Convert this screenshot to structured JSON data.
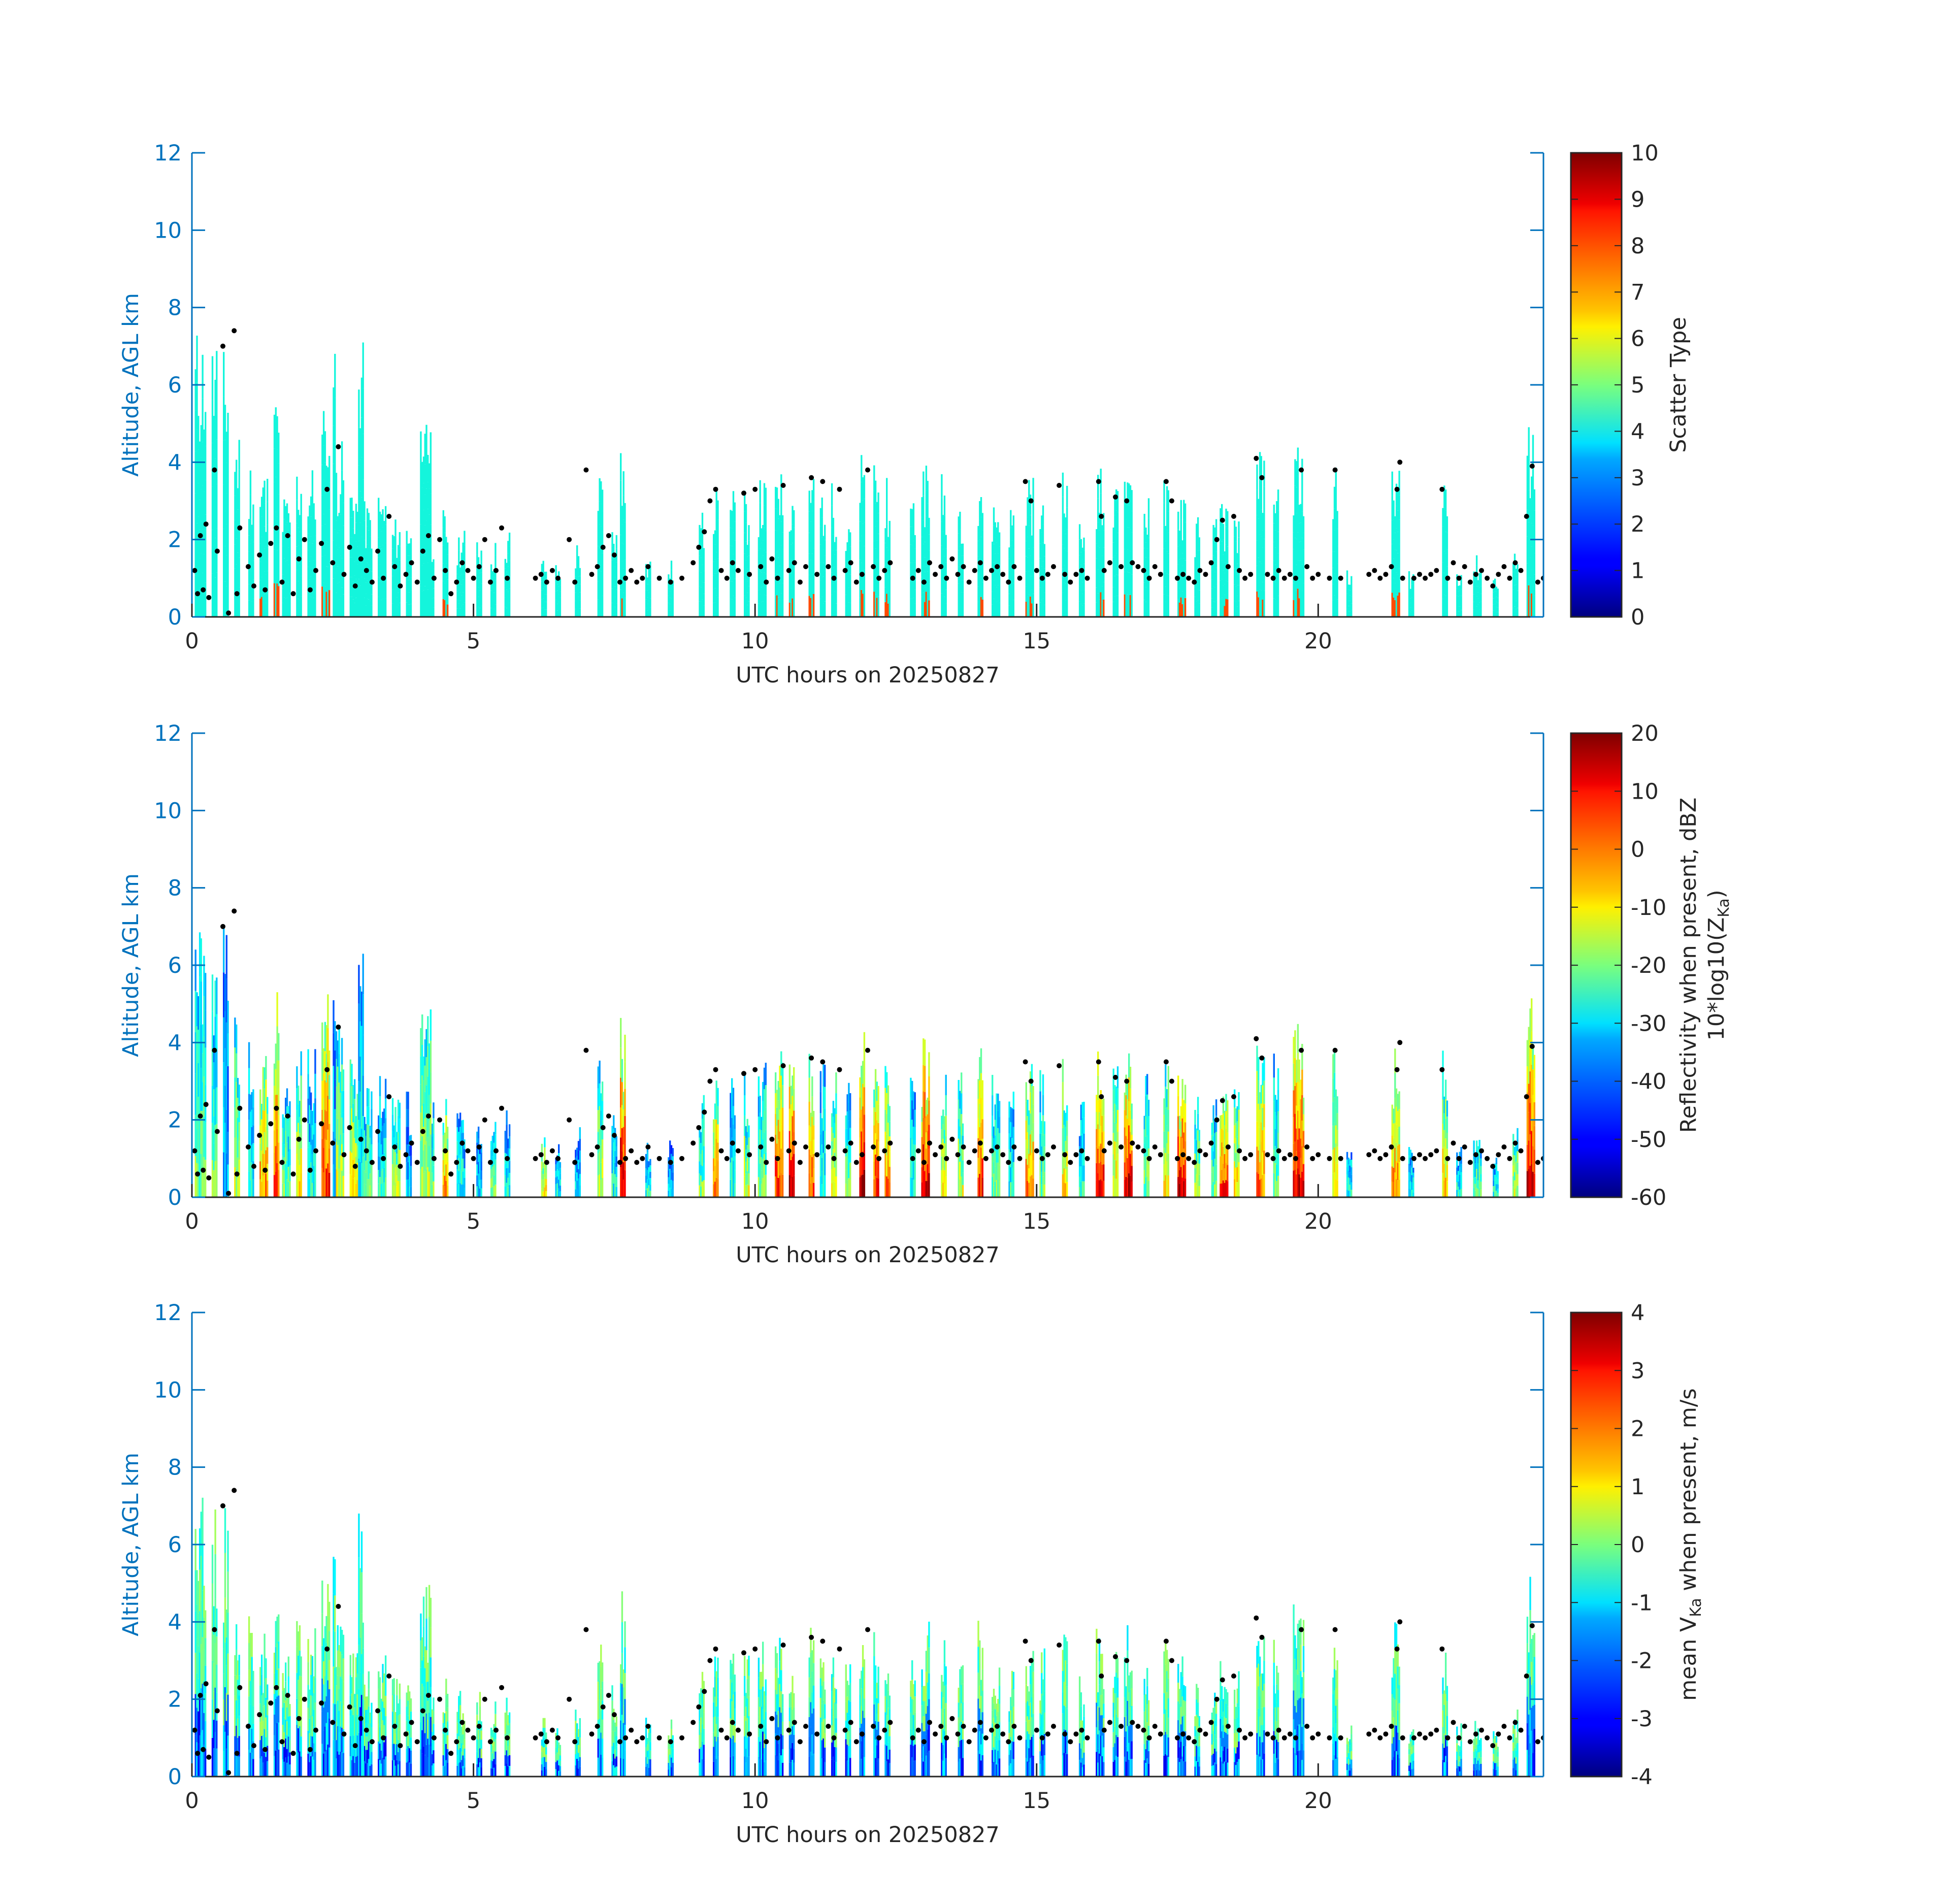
{
  "chart_data": [
    {
      "type": "heatmap",
      "xlabel": "UTC hours on 20250827",
      "ylabel": "Altitude, AGL km",
      "xlim": [
        0,
        24
      ],
      "ylim": [
        0,
        12
      ],
      "xticks": [
        0,
        5,
        10,
        15,
        20
      ],
      "yticks": [
        0,
        2,
        4,
        6,
        8,
        10,
        12
      ],
      "colorbar": {
        "label": "Scatter Type",
        "label_sub": "",
        "range": [
          0,
          10
        ],
        "ticks": [
          0,
          1,
          2,
          3,
          4,
          5,
          6,
          7,
          8,
          9,
          10
        ],
        "colormap": "jet"
      },
      "field": "scatter_type",
      "overlay": "black dots: cloud-base altitude (km)"
    },
    {
      "type": "heatmap",
      "xlabel": "UTC hours on 20250827",
      "ylabel": "Altitude, AGL km",
      "xlim": [
        0,
        24
      ],
      "ylim": [
        0,
        12
      ],
      "xticks": [
        0,
        5,
        10,
        15,
        20
      ],
      "yticks": [
        0,
        2,
        4,
        6,
        8,
        10,
        12
      ],
      "colorbar": {
        "label": "Reflectivity when present, dBZ",
        "label_sub": "10*log10(Z",
        "label_sub_subscript": "Ka",
        "label_sub_end": ")",
        "range": [
          -60,
          20
        ],
        "ticks": [
          -60,
          -50,
          -40,
          -30,
          -20,
          -10,
          0,
          10,
          20
        ],
        "colormap": "jet"
      },
      "field": "reflectivity_dbz",
      "overlay": "black dots: cloud-base altitude (km)"
    },
    {
      "type": "heatmap",
      "xlabel": "UTC hours on 20250827",
      "ylabel": "Altitude, AGL km",
      "xlim": [
        0,
        24
      ],
      "ylim": [
        0,
        12
      ],
      "xticks": [
        0,
        5,
        10,
        15,
        20
      ],
      "yticks": [
        0,
        2,
        4,
        6,
        8,
        10,
        12
      ],
      "colorbar": {
        "label": "mean V",
        "label_subscript": "Ka",
        "label_end": " when present, m/s",
        "range": [
          -4,
          4
        ],
        "ticks": [
          -4,
          -3,
          -2,
          -1,
          0,
          1,
          2,
          3,
          4
        ],
        "colormap": "jet"
      },
      "field": "mean_doppler_velocity",
      "overlay": "black dots: cloud-base altitude (km)"
    }
  ],
  "cloud_columns": [
    [
      0.05,
      0.25,
      7.6,
      4
    ],
    [
      0.35,
      0.45,
      7.4,
      4
    ],
    [
      0.55,
      0.65,
      7.0,
      2
    ],
    [
      0.75,
      0.85,
      5.0,
      5
    ],
    [
      1.0,
      1.1,
      4.2,
      3
    ],
    [
      1.2,
      1.35,
      3.8,
      7
    ],
    [
      1.45,
      1.55,
      5.8,
      8
    ],
    [
      1.6,
      1.75,
      3.2,
      4
    ],
    [
      1.85,
      1.95,
      4.1,
      6
    ],
    [
      2.05,
      2.2,
      4.0,
      3
    ],
    [
      2.3,
      2.45,
      5.5,
      8
    ],
    [
      2.55,
      2.7,
      4.6,
      5
    ],
    [
      2.8,
      2.95,
      3.6,
      6
    ],
    [
      3.05,
      3.2,
      3.0,
      4
    ],
    [
      3.3,
      3.45,
      3.3,
      3
    ],
    [
      3.55,
      3.7,
      2.6,
      5
    ],
    [
      3.8,
      3.9,
      2.8,
      2
    ],
    [
      4.2,
      4.3,
      2.5,
      4
    ],
    [
      4.45,
      4.55,
      2.8,
      7
    ],
    [
      4.7,
      4.85,
      2.3,
      3
    ],
    [
      5.05,
      5.15,
      2.2,
      2
    ],
    [
      5.3,
      5.4,
      2.0,
      4
    ],
    [
      5.55,
      5.65,
      2.4,
      3
    ],
    [
      6.2,
      6.3,
      1.6,
      6
    ],
    [
      6.45,
      6.55,
      1.4,
      3
    ],
    [
      6.8,
      6.9,
      2.0,
      2
    ],
    [
      7.2,
      7.3,
      3.8,
      5
    ],
    [
      7.45,
      7.55,
      2.4,
      3
    ],
    [
      7.6,
      7.7,
      4.9,
      9
    ],
    [
      8.05,
      8.15,
      1.6,
      3
    ],
    [
      8.45,
      8.55,
      1.5,
      2
    ],
    [
      9.0,
      9.1,
      2.8,
      4
    ],
    [
      9.25,
      9.35,
      3.4,
      7
    ],
    [
      9.55,
      9.65,
      3.4,
      3
    ],
    [
      9.8,
      9.9,
      3.3,
      5
    ],
    [
      10.05,
      10.2,
      3.6,
      4
    ],
    [
      10.35,
      10.5,
      3.8,
      8
    ],
    [
      10.6,
      10.7,
      3.7,
      9
    ],
    [
      10.95,
      11.05,
      3.9,
      8
    ],
    [
      11.15,
      11.25,
      3.6,
      3
    ],
    [
      11.35,
      11.45,
      3.5,
      6
    ],
    [
      11.6,
      11.7,
      3.0,
      4
    ],
    [
      11.85,
      11.95,
      4.4,
      9
    ],
    [
      12.1,
      12.2,
      4.0,
      8
    ],
    [
      12.3,
      12.4,
      3.6,
      7
    ],
    [
      12.75,
      12.85,
      3.3,
      3
    ],
    [
      12.95,
      13.1,
      4.2,
      9
    ],
    [
      13.3,
      13.4,
      3.8,
      6
    ],
    [
      13.6,
      13.7,
      3.4,
      5
    ],
    [
      13.95,
      14.05,
      4.2,
      8
    ],
    [
      14.2,
      14.35,
      3.2,
      4
    ],
    [
      14.5,
      14.6,
      3.0,
      3
    ],
    [
      14.8,
      14.95,
      3.7,
      7
    ],
    [
      15.05,
      15.15,
      3.4,
      4
    ],
    [
      15.45,
      15.55,
      3.8,
      6
    ],
    [
      15.75,
      15.85,
      2.6,
      3
    ],
    [
      16.05,
      16.2,
      3.9,
      9
    ],
    [
      16.35,
      16.45,
      3.4,
      6
    ],
    [
      16.55,
      16.7,
      4.2,
      9
    ],
    [
      16.9,
      17.0,
      3.3,
      4
    ],
    [
      17.25,
      17.35,
      3.6,
      6
    ],
    [
      17.5,
      17.65,
      3.3,
      9
    ],
    [
      17.8,
      17.9,
      2.7,
      5
    ],
    [
      18.1,
      18.2,
      2.6,
      4
    ],
    [
      18.25,
      18.4,
      3.0,
      8
    ],
    [
      18.5,
      18.6,
      2.8,
      6
    ],
    [
      18.9,
      19.05,
      4.3,
      7
    ],
    [
      19.2,
      19.3,
      3.8,
      4
    ],
    [
      19.55,
      19.75,
      4.5,
      9
    ],
    [
      20.25,
      20.35,
      3.9,
      6
    ],
    [
      20.5,
      20.6,
      1.4,
      3
    ],
    [
      21.3,
      21.45,
      4.1,
      7
    ],
    [
      21.6,
      21.7,
      1.3,
      3
    ],
    [
      22.2,
      22.3,
      4.0,
      6
    ],
    [
      22.45,
      22.55,
      1.4,
      3
    ],
    [
      22.75,
      22.9,
      1.6,
      4
    ],
    [
      23.1,
      23.2,
      1.2,
      3
    ],
    [
      23.45,
      23.55,
      1.8,
      5
    ],
    [
      23.7,
      23.85,
      5.2,
      9
    ],
    [
      4.05,
      4.25,
      5.1,
      5
    ],
    [
      2.95,
      3.05,
      7.2,
      3
    ],
    [
      2.5,
      2.55,
      7.3,
      2
    ]
  ],
  "cloud_base_points": [
    [
      0.05,
      1.2
    ],
    [
      0.1,
      0.6
    ],
    [
      0.15,
      2.1
    ],
    [
      0.2,
      0.7
    ],
    [
      0.25,
      2.4
    ],
    [
      0.3,
      0.5
    ],
    [
      0.4,
      3.8
    ],
    [
      0.45,
      1.7
    ],
    [
      0.55,
      7.0
    ],
    [
      0.65,
      0.1
    ],
    [
      0.75,
      7.4
    ],
    [
      0.8,
      0.6
    ],
    [
      0.85,
      2.3
    ],
    [
      1.0,
      1.3
    ],
    [
      1.1,
      0.8
    ],
    [
      1.2,
      1.6
    ],
    [
      1.3,
      0.7
    ],
    [
      1.4,
      1.9
    ],
    [
      1.5,
      2.3
    ],
    [
      1.6,
      0.9
    ],
    [
      1.7,
      2.1
    ],
    [
      1.8,
      0.6
    ],
    [
      1.9,
      1.5
    ],
    [
      2.0,
      2.0
    ],
    [
      2.1,
      0.7
    ],
    [
      2.2,
      1.2
    ],
    [
      2.3,
      1.9
    ],
    [
      2.4,
      3.3
    ],
    [
      2.5,
      1.4
    ],
    [
      2.6,
      4.4
    ],
    [
      2.7,
      1.1
    ],
    [
      2.8,
      1.8
    ],
    [
      2.9,
      0.8
    ],
    [
      3.0,
      1.5
    ],
    [
      3.1,
      1.2
    ],
    [
      3.2,
      0.9
    ],
    [
      3.3,
      1.7
    ],
    [
      3.4,
      1.0
    ],
    [
      3.5,
      2.6
    ],
    [
      3.6,
      1.3
    ],
    [
      3.7,
      0.8
    ],
    [
      3.8,
      1.1
    ],
    [
      3.9,
      1.4
    ],
    [
      4.0,
      0.9
    ],
    [
      4.1,
      1.7
    ],
    [
      4.2,
      2.1
    ],
    [
      4.3,
      1.0
    ],
    [
      4.4,
      2.0
    ],
    [
      4.5,
      1.2
    ],
    [
      4.6,
      0.6
    ],
    [
      4.7,
      0.9
    ],
    [
      4.8,
      1.4
    ],
    [
      4.9,
      1.2
    ],
    [
      5.0,
      1.0
    ],
    [
      5.1,
      1.3
    ],
    [
      5.2,
      2.0
    ],
    [
      5.3,
      0.9
    ],
    [
      5.4,
      1.2
    ],
    [
      5.5,
      2.3
    ],
    [
      5.6,
      1.0
    ],
    [
      6.1,
      1.0
    ],
    [
      6.2,
      1.1
    ],
    [
      6.3,
      0.9
    ],
    [
      6.4,
      1.2
    ],
    [
      6.5,
      1.0
    ],
    [
      6.7,
      2.0
    ],
    [
      6.8,
      0.9
    ],
    [
      7.0,
      3.8
    ],
    [
      7.1,
      1.1
    ],
    [
      7.2,
      1.3
    ],
    [
      7.3,
      1.8
    ],
    [
      7.4,
      2.1
    ],
    [
      7.5,
      1.6
    ],
    [
      7.6,
      0.9
    ],
    [
      7.7,
      1.0
    ],
    [
      7.8,
      1.2
    ],
    [
      7.9,
      0.9
    ],
    [
      8.0,
      1.0
    ],
    [
      8.1,
      1.3
    ],
    [
      8.3,
      1.0
    ],
    [
      8.5,
      0.9
    ],
    [
      8.7,
      1.0
    ],
    [
      8.9,
      1.4
    ],
    [
      9.0,
      1.8
    ],
    [
      9.1,
      2.2
    ],
    [
      9.2,
      3.0
    ],
    [
      9.3,
      3.3
    ],
    [
      9.4,
      1.2
    ],
    [
      9.5,
      1.0
    ],
    [
      9.6,
      1.4
    ],
    [
      9.7,
      1.2
    ],
    [
      9.8,
      3.2
    ],
    [
      9.9,
      1.1
    ],
    [
      10.0,
      3.3
    ],
    [
      10.1,
      1.3
    ],
    [
      10.2,
      0.9
    ],
    [
      10.3,
      1.5
    ],
    [
      10.4,
      1.0
    ],
    [
      10.5,
      3.4
    ],
    [
      10.6,
      1.2
    ],
    [
      10.7,
      1.4
    ],
    [
      10.8,
      0.9
    ],
    [
      10.9,
      1.3
    ],
    [
      11.0,
      3.6
    ],
    [
      11.1,
      1.1
    ],
    [
      11.2,
      3.5
    ],
    [
      11.3,
      1.3
    ],
    [
      11.4,
      1.0
    ],
    [
      11.5,
      3.3
    ],
    [
      11.6,
      1.2
    ],
    [
      11.7,
      1.4
    ],
    [
      11.8,
      0.9
    ],
    [
      11.9,
      1.1
    ],
    [
      12.0,
      3.8
    ],
    [
      12.1,
      1.3
    ],
    [
      12.2,
      1.0
    ],
    [
      12.3,
      1.2
    ],
    [
      12.4,
      1.4
    ],
    [
      12.8,
      1.0
    ],
    [
      12.9,
      1.2
    ],
    [
      13.0,
      0.9
    ],
    [
      13.1,
      1.4
    ],
    [
      13.2,
      1.1
    ],
    [
      13.3,
      1.3
    ],
    [
      13.4,
      1.0
    ],
    [
      13.5,
      1.5
    ],
    [
      13.6,
      1.1
    ],
    [
      13.7,
      1.3
    ],
    [
      13.8,
      0.9
    ],
    [
      13.9,
      1.2
    ],
    [
      14.0,
      1.4
    ],
    [
      14.1,
      1.0
    ],
    [
      14.2,
      1.2
    ],
    [
      14.3,
      1.3
    ],
    [
      14.4,
      1.1
    ],
    [
      14.5,
      0.9
    ],
    [
      14.6,
      1.3
    ],
    [
      14.7,
      1.0
    ],
    [
      14.8,
      3.5
    ],
    [
      14.9,
      3.0
    ],
    [
      15.0,
      1.2
    ],
    [
      15.1,
      1.0
    ],
    [
      15.2,
      1.1
    ],
    [
      15.3,
      1.3
    ],
    [
      15.4,
      3.4
    ],
    [
      15.5,
      1.1
    ],
    [
      15.6,
      0.9
    ],
    [
      15.7,
      1.1
    ],
    [
      15.8,
      1.2
    ],
    [
      15.9,
      1.0
    ],
    [
      16.1,
      3.5
    ],
    [
      16.15,
      2.6
    ],
    [
      16.2,
      1.2
    ],
    [
      16.3,
      1.4
    ],
    [
      16.4,
      3.1
    ],
    [
      16.5,
      1.3
    ],
    [
      16.6,
      3.0
    ],
    [
      16.7,
      1.4
    ],
    [
      16.8,
      1.3
    ],
    [
      16.9,
      1.2
    ],
    [
      17.0,
      1.0
    ],
    [
      17.1,
      1.3
    ],
    [
      17.2,
      1.1
    ],
    [
      17.3,
      3.5
    ],
    [
      17.4,
      3.0
    ],
    [
      17.5,
      1.0
    ],
    [
      17.6,
      1.1
    ],
    [
      17.7,
      1.0
    ],
    [
      17.8,
      0.9
    ],
    [
      17.9,
      1.2
    ],
    [
      18.0,
      1.1
    ],
    [
      18.1,
      1.4
    ],
    [
      18.2,
      2.0
    ],
    [
      18.3,
      2.5
    ],
    [
      18.4,
      1.3
    ],
    [
      18.5,
      2.6
    ],
    [
      18.6,
      1.2
    ],
    [
      18.7,
      1.0
    ],
    [
      18.8,
      1.1
    ],
    [
      18.9,
      4.1
    ],
    [
      19.0,
      3.6
    ],
    [
      19.1,
      1.1
    ],
    [
      19.2,
      1.0
    ],
    [
      19.3,
      1.2
    ],
    [
      19.4,
      1.0
    ],
    [
      19.5,
      1.1
    ],
    [
      19.6,
      1.0
    ],
    [
      19.7,
      3.8
    ],
    [
      19.8,
      1.3
    ],
    [
      19.9,
      1.0
    ],
    [
      20.0,
      1.1
    ],
    [
      20.2,
      1.0
    ],
    [
      20.3,
      3.8
    ],
    [
      20.4,
      1.0
    ],
    [
      20.9,
      1.1
    ],
    [
      21.0,
      1.2
    ],
    [
      21.1,
      1.0
    ],
    [
      21.2,
      1.1
    ],
    [
      21.3,
      1.3
    ],
    [
      21.4,
      3.3
    ],
    [
      21.45,
      4.0
    ],
    [
      21.5,
      1.0
    ],
    [
      21.7,
      1.0
    ],
    [
      21.8,
      1.1
    ],
    [
      21.9,
      1.0
    ],
    [
      22.0,
      1.1
    ],
    [
      22.1,
      1.2
    ],
    [
      22.2,
      3.3
    ],
    [
      22.3,
      1.0
    ],
    [
      22.4,
      1.4
    ],
    [
      22.5,
      1.0
    ],
    [
      22.6,
      1.3
    ],
    [
      22.7,
      0.9
    ],
    [
      22.8,
      1.1
    ],
    [
      22.9,
      1.2
    ],
    [
      23.0,
      1.0
    ],
    [
      23.1,
      0.8
    ],
    [
      23.2,
      1.1
    ],
    [
      23.3,
      1.3
    ],
    [
      23.4,
      1.0
    ],
    [
      23.5,
      1.4
    ],
    [
      23.6,
      1.2
    ],
    [
      23.7,
      2.6
    ],
    [
      23.8,
      3.9
    ],
    [
      23.9,
      0.9
    ],
    [
      24.0,
      1.0
    ]
  ]
}
